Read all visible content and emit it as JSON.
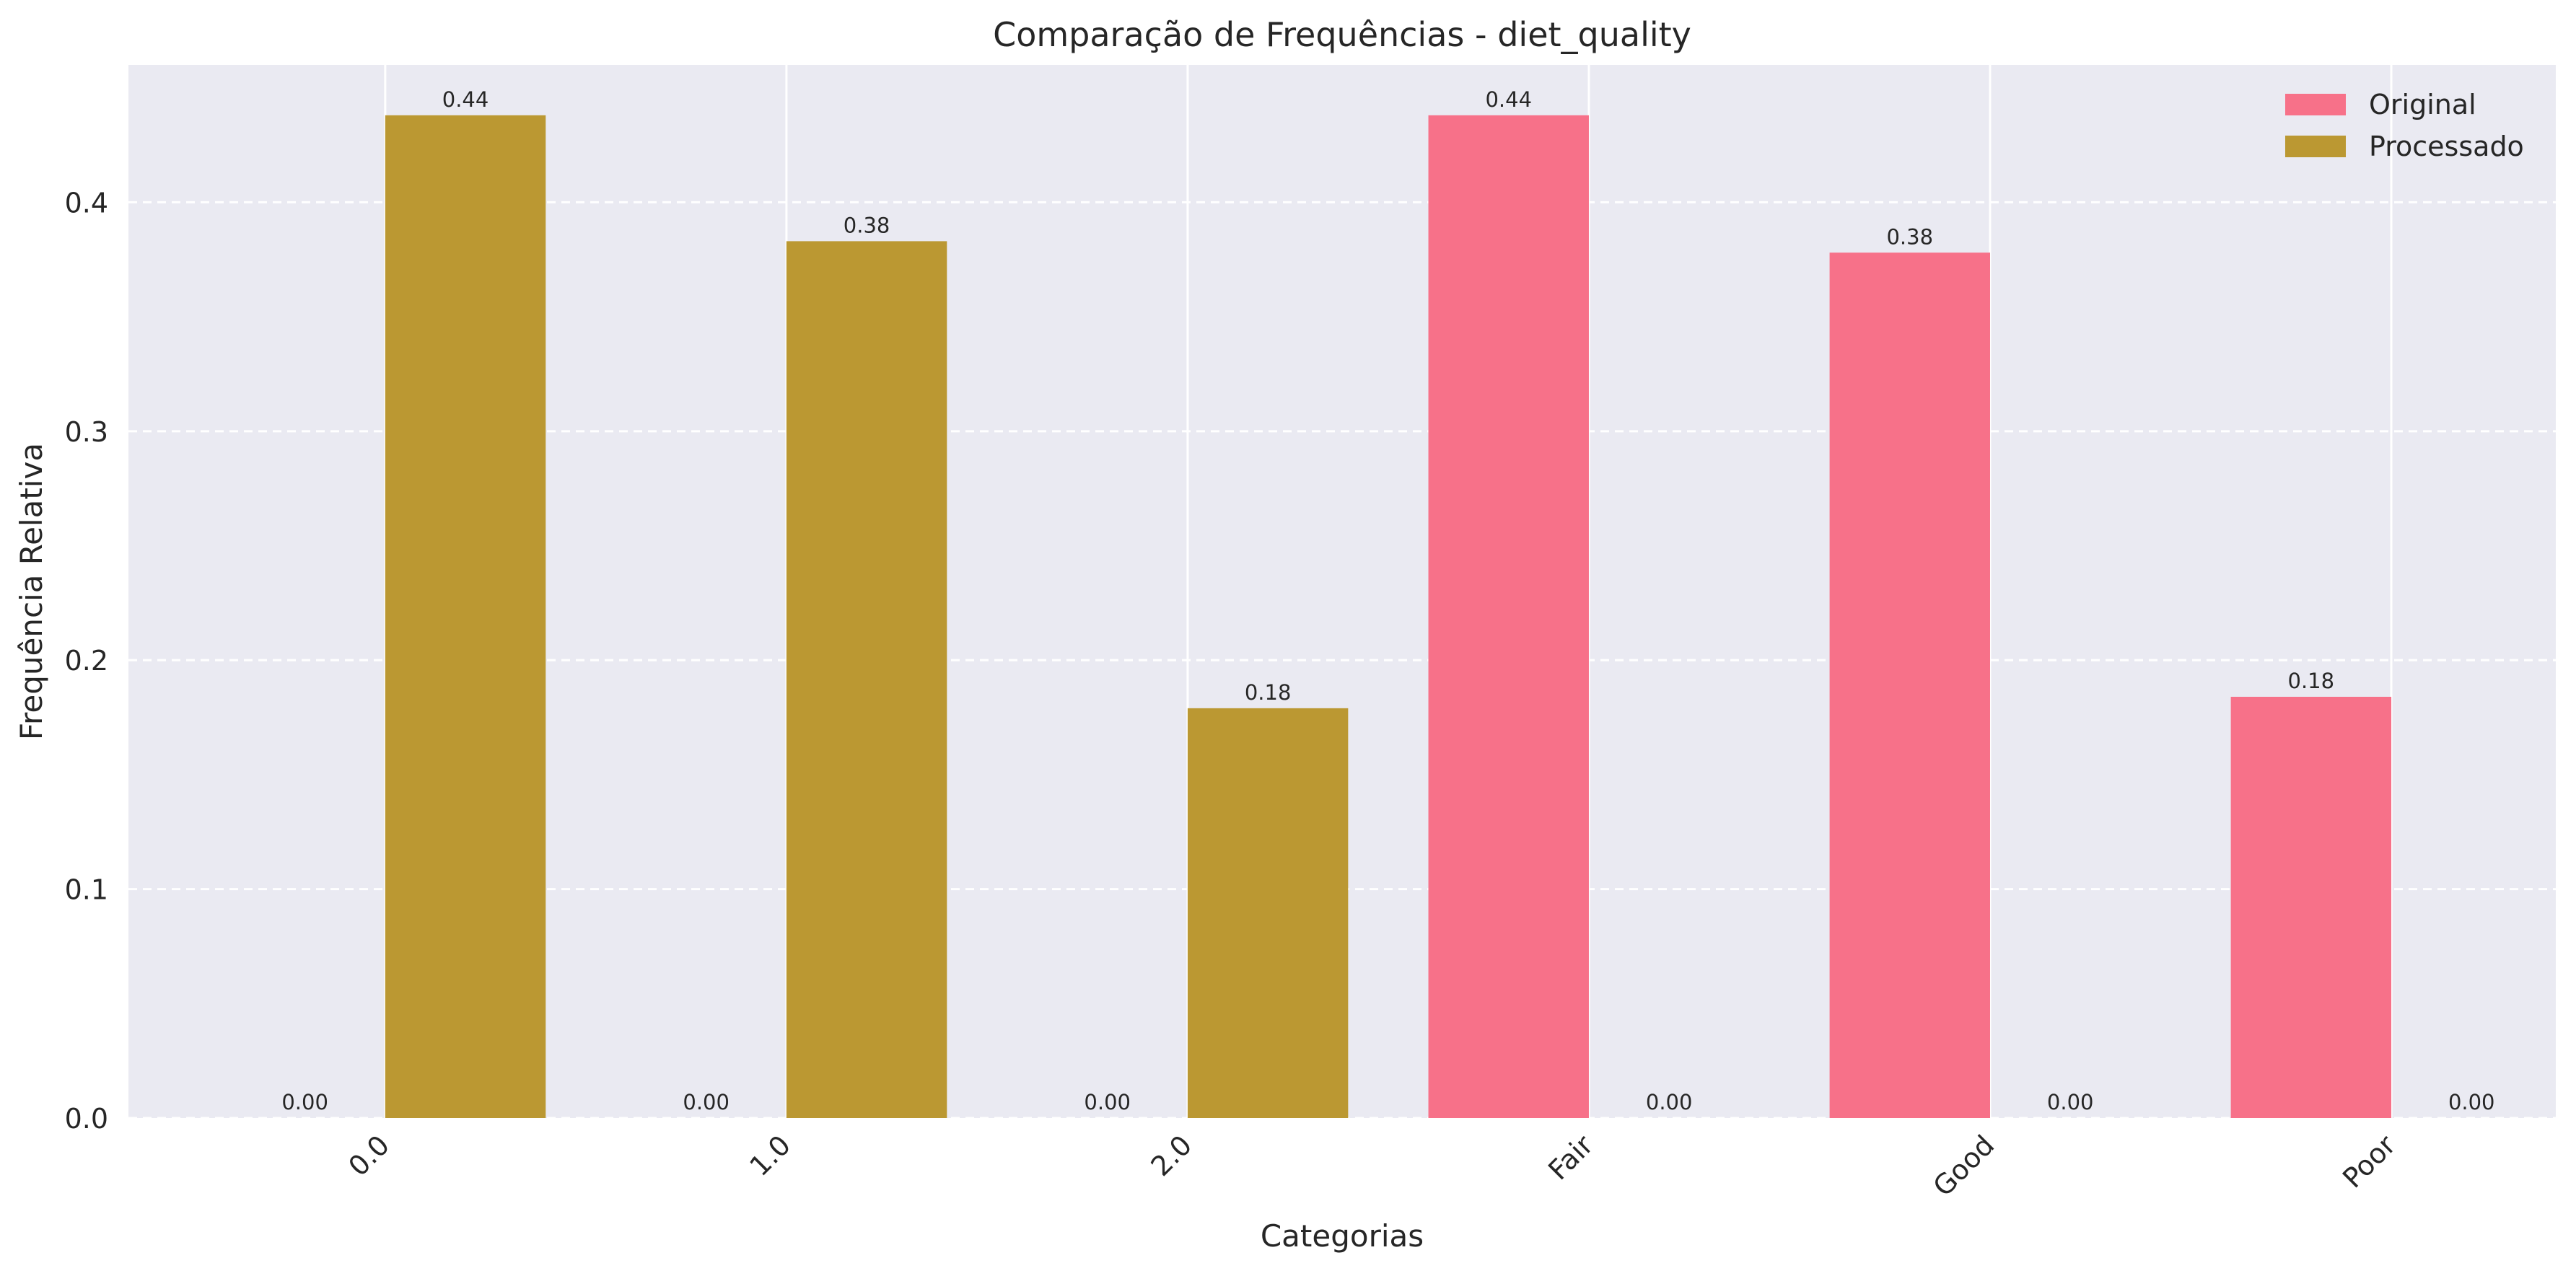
{
  "chart_data": {
    "type": "bar",
    "title": "Comparação de Frequências - diet_quality",
    "xlabel": "Categorias",
    "ylabel": "Frequência Relativa",
    "categories": [
      "0.0",
      "1.0",
      "2.0",
      "Fair",
      "Good",
      "Poor"
    ],
    "series": [
      {
        "name": "Original",
        "color": "#f77189",
        "values": [
          0.0,
          0.0,
          0.0,
          0.438,
          0.378,
          0.184
        ],
        "labels": [
          "0.00",
          "0.00",
          "0.00",
          "0.44",
          "0.38",
          "0.18"
        ]
      },
      {
        "name": "Processado",
        "color": "#bb9832",
        "values": [
          0.438,
          0.383,
          0.179,
          0.0,
          0.0,
          0.0
        ],
        "labels": [
          "0.44",
          "0.38",
          "0.18",
          "0.00",
          "0.00",
          "0.00"
        ]
      }
    ],
    "ylim": [
      0,
      0.46
    ],
    "yticks": [
      "0.0",
      "0.1",
      "0.2",
      "0.3",
      "0.4"
    ],
    "grid": true,
    "legend_position": "top-right",
    "background_color": "#eaeaf2"
  }
}
